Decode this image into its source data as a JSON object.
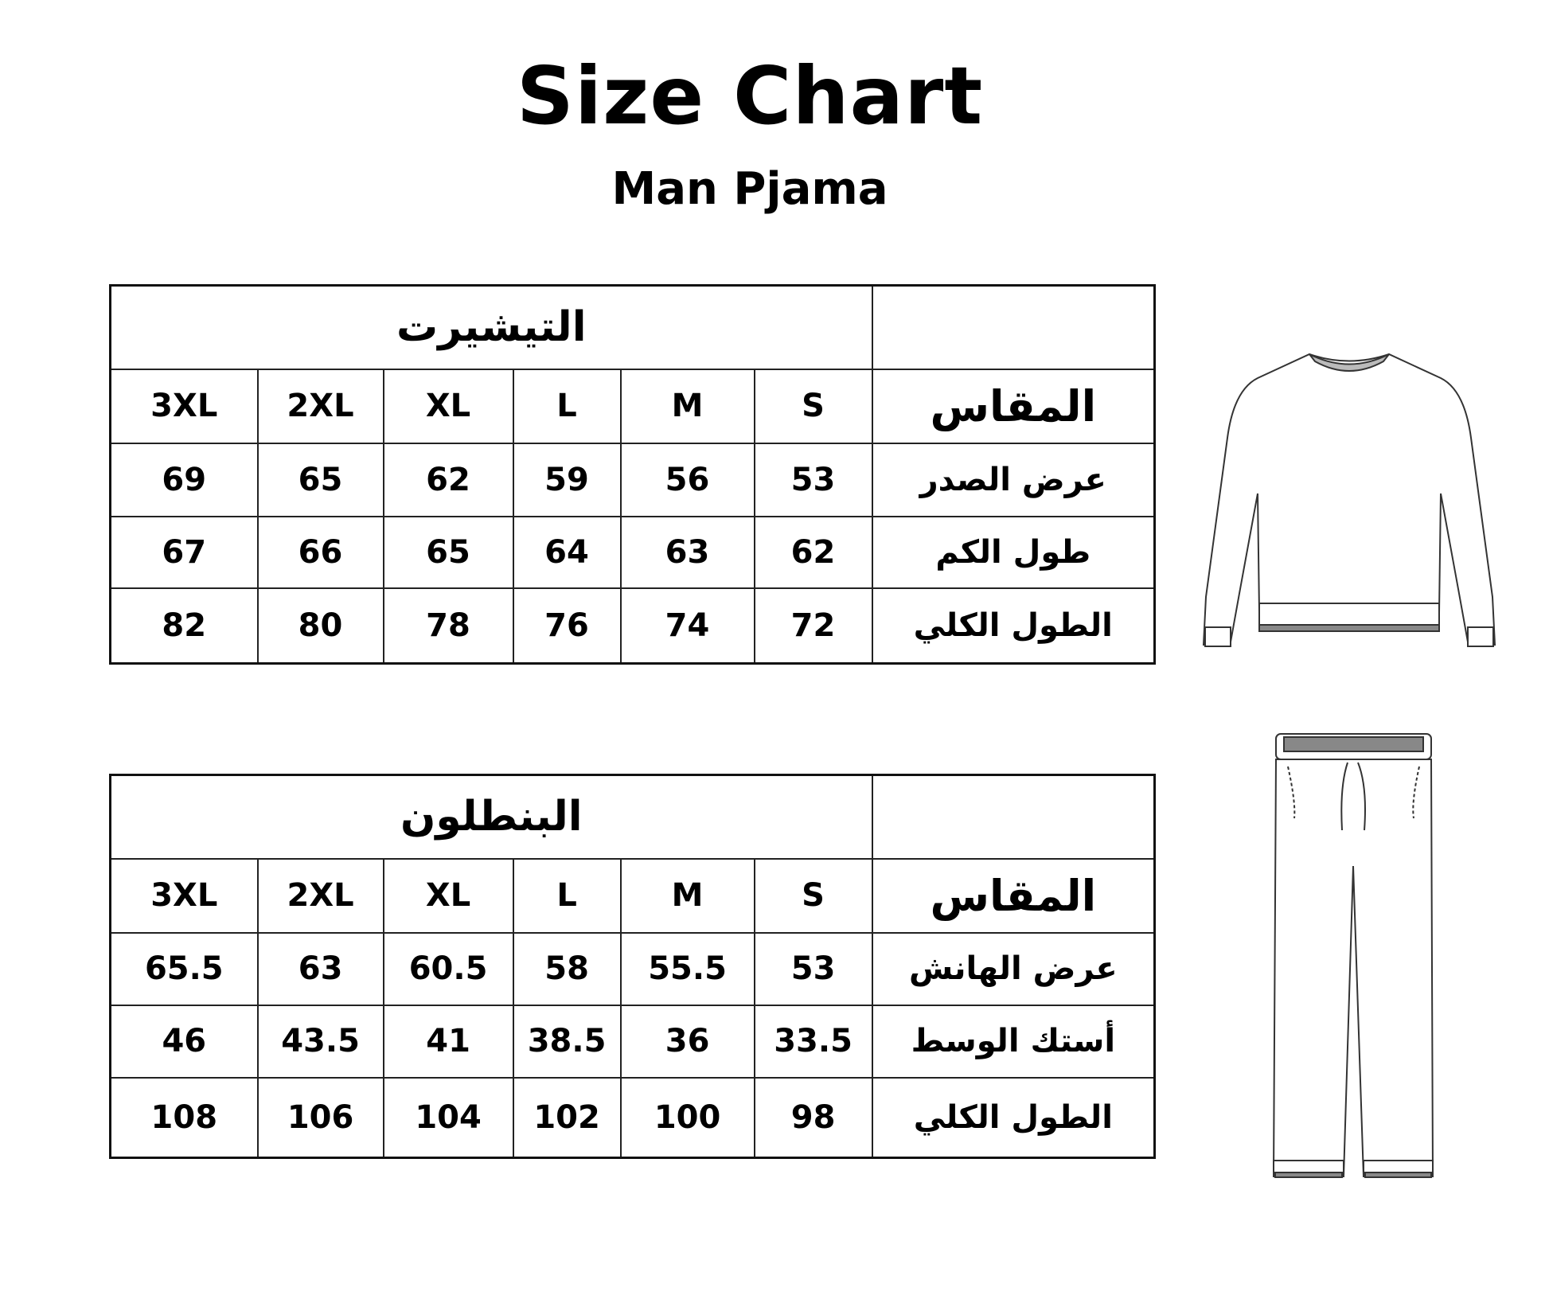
{
  "header": {
    "title": "Size Chart",
    "subtitle": "Man Pjama"
  },
  "tables": [
    {
      "group_title": "التيشيرت",
      "size_label": "المقاس",
      "sizes": [
        "S",
        "M",
        "L",
        "XL",
        "2XL",
        "3XL"
      ],
      "rows": [
        {
          "label": "عرض الصدر",
          "values": [
            "53",
            "56",
            "59",
            "62",
            "65",
            "69"
          ]
        },
        {
          "label": "طول الكم",
          "values": [
            "62",
            "63",
            "64",
            "65",
            "66",
            "67"
          ]
        },
        {
          "label": "الطول الكلي",
          "values": [
            "72",
            "74",
            "76",
            "78",
            "80",
            "82"
          ]
        }
      ],
      "illustration": "sweatshirt-icon"
    },
    {
      "group_title": "البنطلون",
      "size_label": "المقاس",
      "sizes": [
        "S",
        "M",
        "L",
        "XL",
        "2XL",
        "3XL"
      ],
      "rows": [
        {
          "label": "عرض الهانش",
          "values": [
            "53",
            "55.5",
            "58",
            "60.5",
            "63",
            "65.5"
          ]
        },
        {
          "label": "أستك الوسط",
          "values": [
            "33.5",
            "36",
            "38.5",
            "41",
            "43.5",
            "46"
          ]
        },
        {
          "label": "الطول الكلي",
          "values": [
            "98",
            "100",
            "102",
            "104",
            "106",
            "108"
          ]
        }
      ],
      "illustration": "pants-icon"
    }
  ]
}
